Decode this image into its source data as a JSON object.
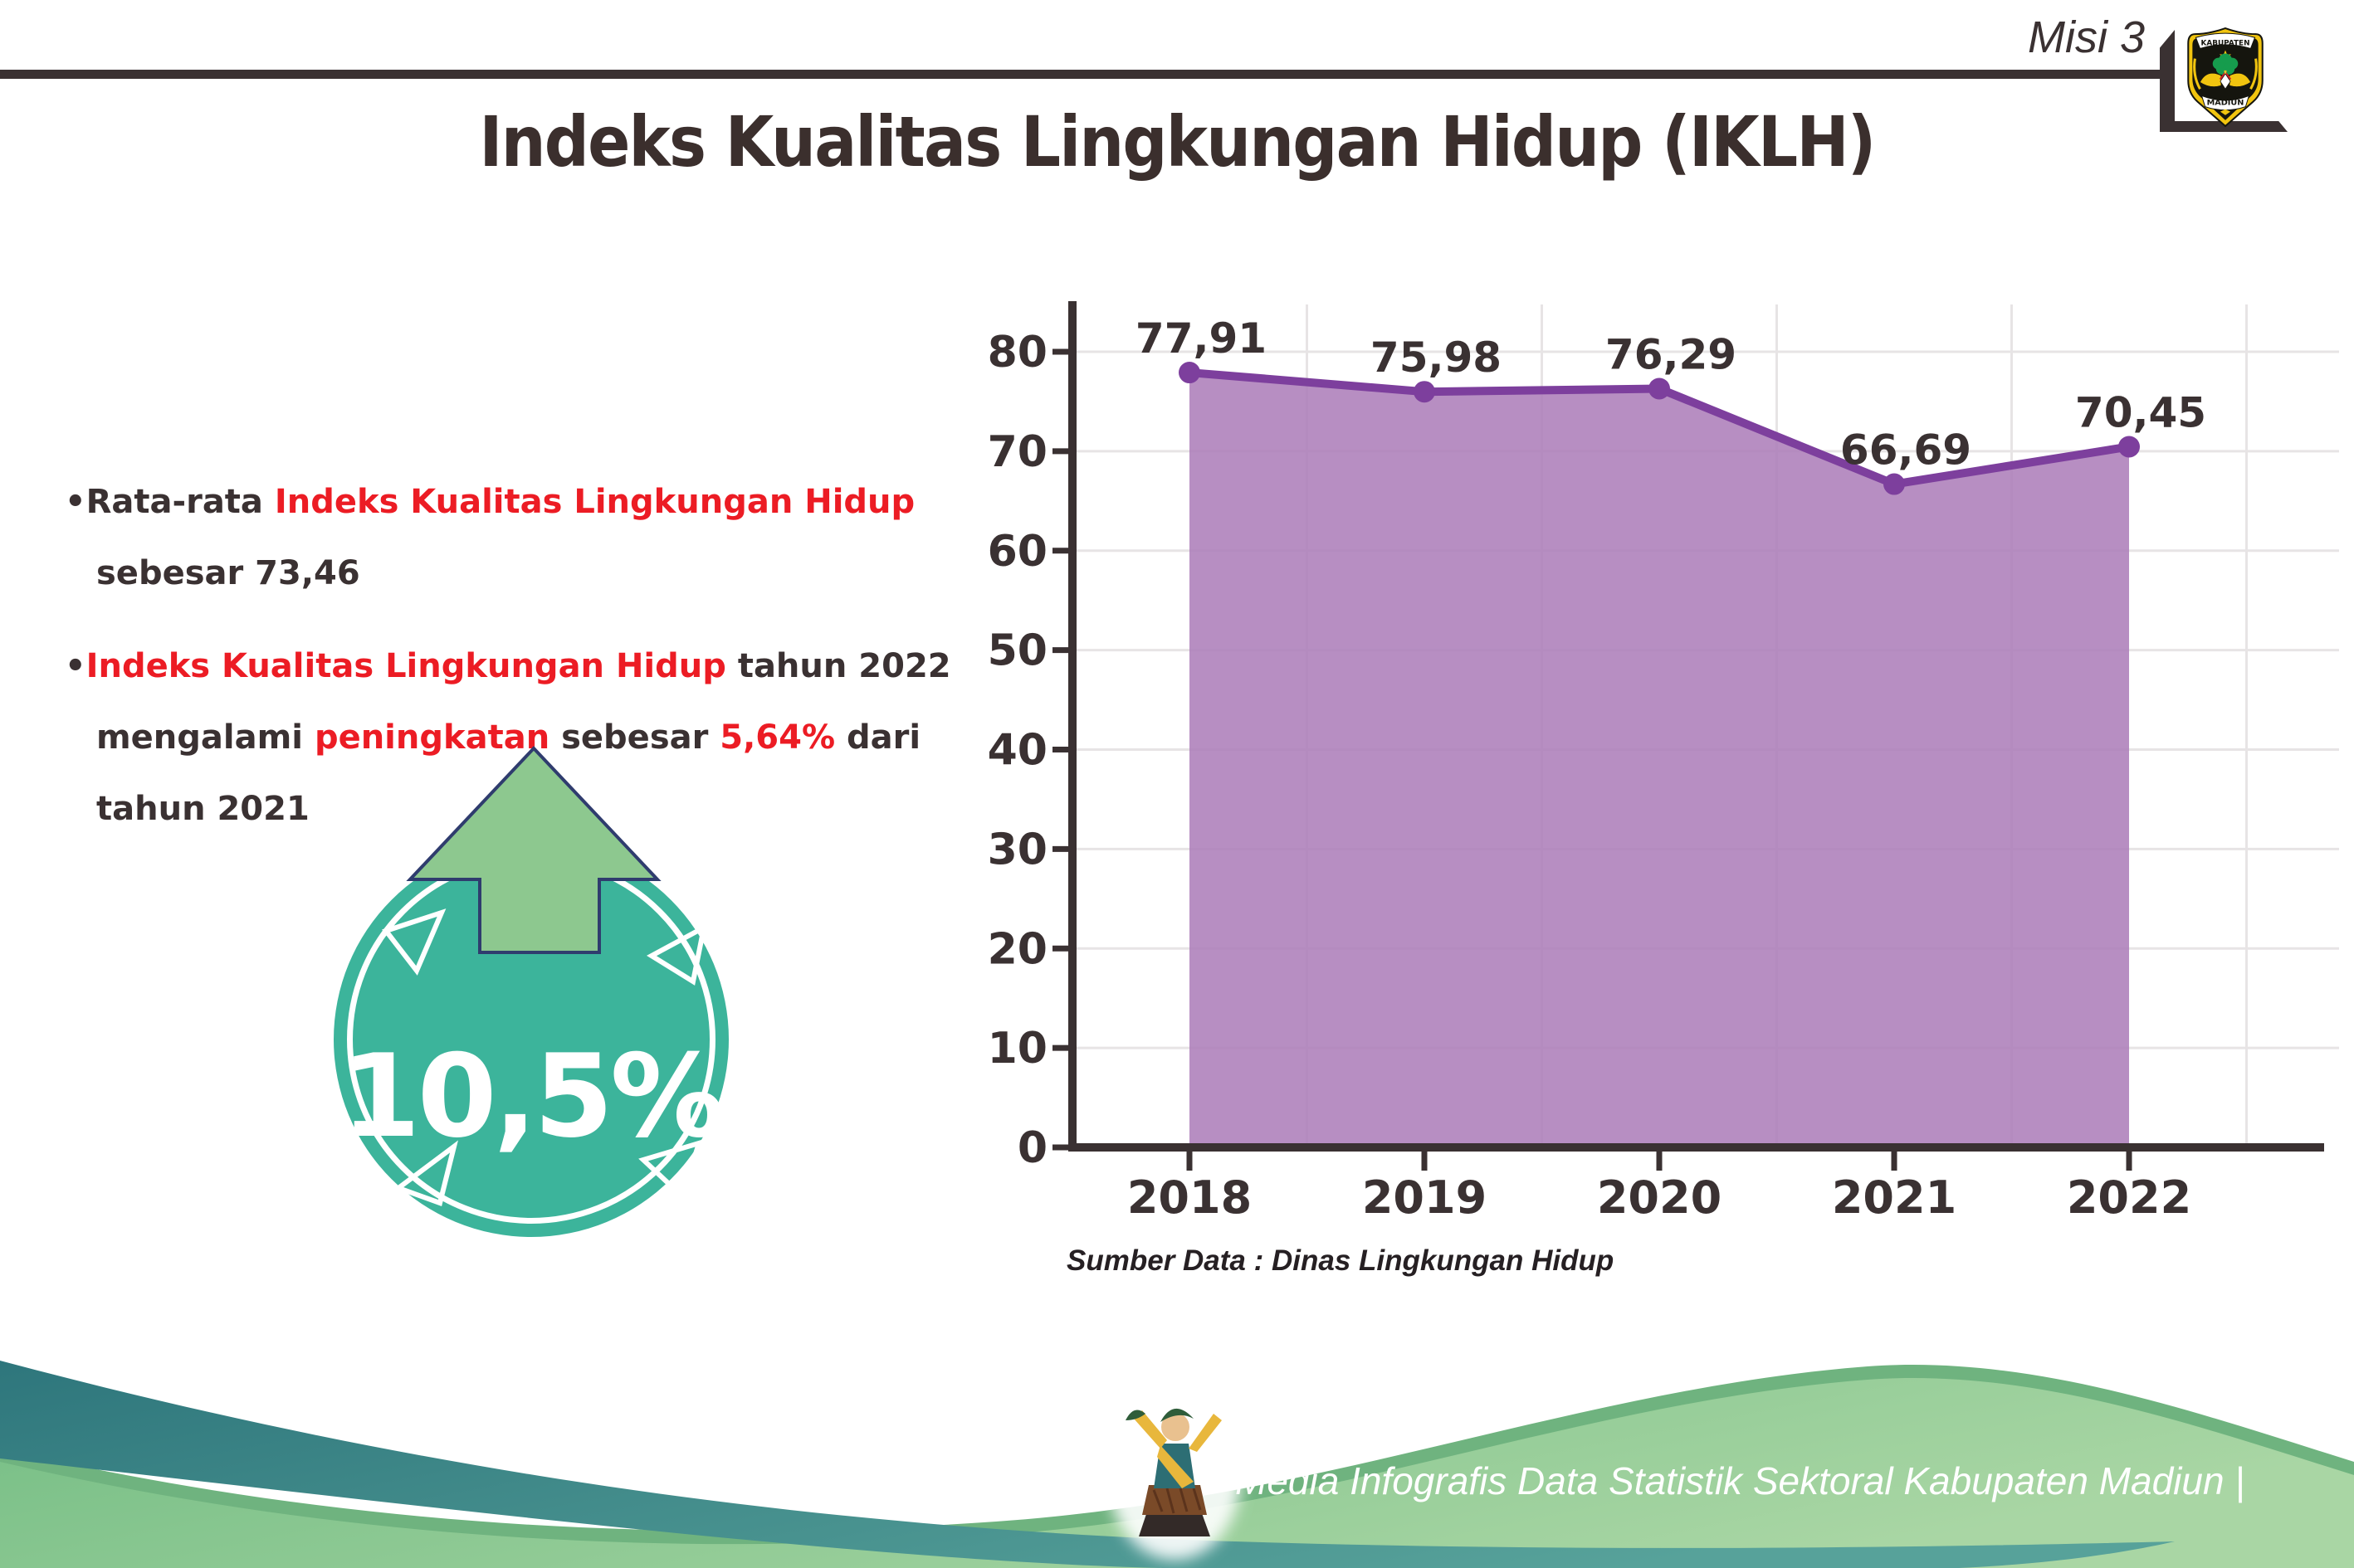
{
  "header": {
    "misi_label": "Misi 3",
    "title": "Indeks Kualitas Lingkungan Hidup (IKLH)"
  },
  "logo": {
    "name": "lambang-kabupaten-madiun",
    "top_text": "KABUPATEN",
    "bottom_text": "MADIUN"
  },
  "bullets": {
    "marker": "•",
    "items": [
      {
        "segments": [
          {
            "text": "Rata-rata ",
            "style": "ink"
          },
          {
            "text": "Indeks Kualitas Lingkungan Hidup",
            "style": "red"
          },
          {
            "break": true
          },
          {
            "text": "sebesar 73,46",
            "style": "ink"
          }
        ]
      },
      {
        "segments": [
          {
            "text": "Indeks Kualitas Lingkungan Hidup",
            "style": "red"
          },
          {
            "text": " tahun 2022",
            "style": "ink"
          },
          {
            "break": true
          },
          {
            "text": "mengalami ",
            "style": "ink"
          },
          {
            "text": "peningkatan",
            "style": "red"
          },
          {
            "text": " sebesar ",
            "style": "ink"
          },
          {
            "text": "5,64%",
            "style": "red"
          },
          {
            "text": " dari",
            "style": "ink"
          },
          {
            "break": true
          },
          {
            "text": "tahun 2021",
            "style": "ink"
          }
        ]
      }
    ]
  },
  "badge": {
    "value": "10,5%"
  },
  "chart_data": {
    "type": "area",
    "title": "",
    "categories": [
      "2018",
      "2019",
      "2020",
      "2021",
      "2022"
    ],
    "series": [
      {
        "name": "IKLH",
        "values": [
          77.91,
          75.98,
          76.29,
          66.69,
          70.45
        ]
      }
    ],
    "point_labels": [
      "77,91",
      "75,98",
      "76,29",
      "66,69",
      "70,45"
    ],
    "ylim": [
      0,
      80
    ],
    "ytick_step": 10,
    "grid": true,
    "legend": "none",
    "xlabel": "",
    "ylabel": ""
  },
  "source_note": "Sumber Data : Dinas Lingkungan Hidup",
  "footer": {
    "credit": "Media Infografis Data Statistik Sektoral Kabupaten Madiun |"
  },
  "colors": {
    "ink": "#3a3132",
    "accent_red": "#ec1c24",
    "chart_line": "#7d3f9d",
    "chart_fill": "#ad7eb9",
    "chart_grid": "#e7e4e5",
    "badge_teal": "#3cb49b",
    "arrow_green": "#8dc88f",
    "arrow_outline": "#2f3c6e",
    "footer_teal_a": "#2e767c",
    "footer_teal_b": "#57a29a",
    "footer_green_edge": "#6fb37f",
    "footer_green_a": "#74bd84",
    "footer_green_b": "#a9d6a4"
  }
}
